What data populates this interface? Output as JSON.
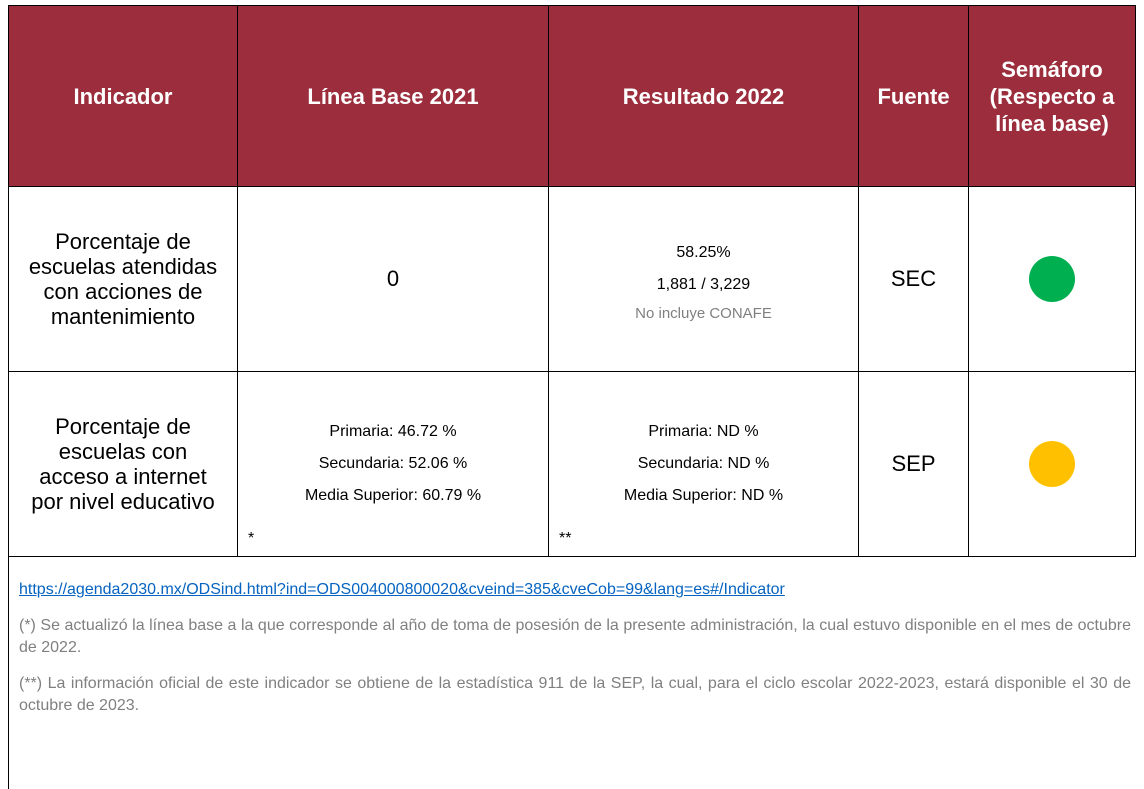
{
  "table": {
    "headers": [
      "Indicador",
      "Línea Base 2021",
      "Resultado 2022",
      "Fuente",
      "Semáforo (Respecto a línea base)"
    ],
    "rows": [
      {
        "indicator": "Porcentaje de escuelas atendidas con acciones de mantenimiento",
        "base_lines": [
          "0"
        ],
        "base_note": null,
        "result_lines": [
          "58.25%",
          "1,881 / 3,229"
        ],
        "result_note": null,
        "result_comment": "No incluye CONAFE",
        "source": "SEC",
        "status_color": "#00b050"
      },
      {
        "indicator": "Porcentaje de escuelas con acceso a internet por nivel educativo",
        "base_lines": [
          "Primaria: 46.72 %",
          "Secundaria: 52.06 %",
          "Media Superior: 60.79 %"
        ],
        "base_note": "*",
        "result_lines": [
          "Primaria: ND %",
          "Secundaria: ND %",
          "Media Superior: ND %"
        ],
        "result_note": "**",
        "result_comment": null,
        "source": "SEP",
        "status_color": "#ffc000"
      }
    ]
  },
  "notes": {
    "link": "https://agenda2030.mx/ODSind.html?ind=ODS004000800020&cveind=385&cveCob=99&lang=es#/Indicator",
    "items": [
      "(*) Se actualizó la línea base a la que corresponde al año de toma de posesión de la presente administración, la cual estuvo disponible en el mes de octubre de 2022.",
      "(**) La información oficial de este indicador se obtiene de la estadística 911 de la SEP, la cual, para el ciclo escolar 2022-2023, estará disponible el 30 de octubre de 2023."
    ]
  }
}
